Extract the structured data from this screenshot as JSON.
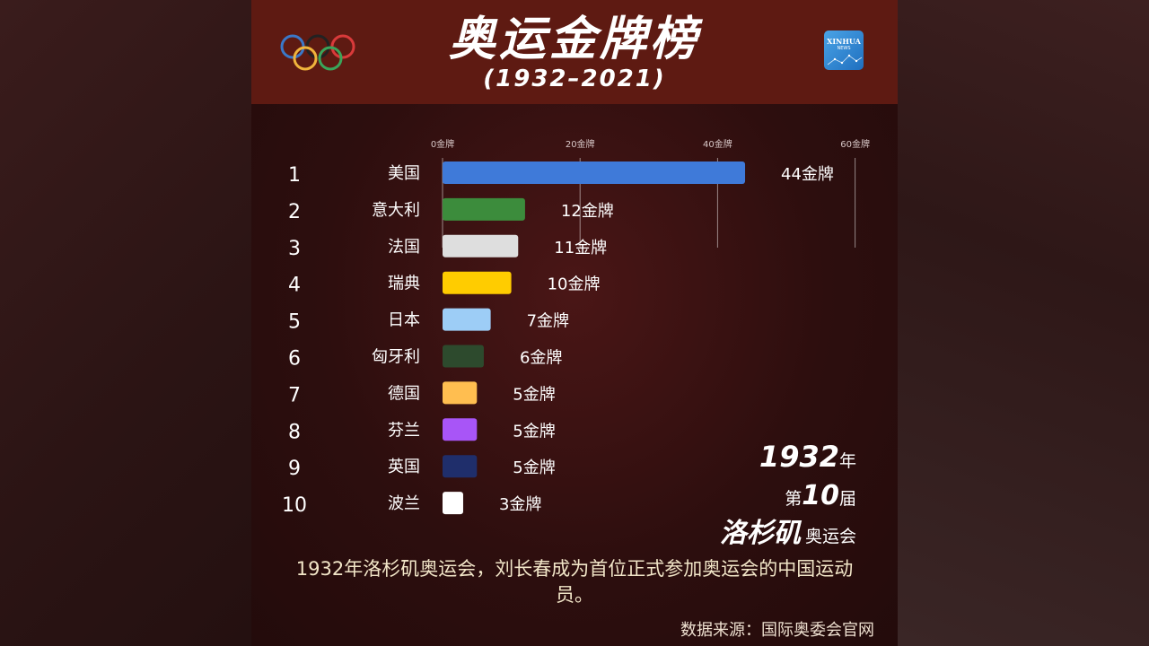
{
  "header": {
    "title": "奥运金牌榜",
    "subtitle": "(1932–2021)",
    "logo_text": "XINHUA",
    "logo_subtext": "NEWS"
  },
  "olympic_rings": [
    "#3a78c8",
    "#222222",
    "#d93a3a",
    "#f0b43c",
    "#3aa55a"
  ],
  "chart_data": {
    "type": "bar",
    "orientation": "horizontal",
    "title": "",
    "xlabel": "",
    "ylabel": "",
    "xlim": [
      0,
      60
    ],
    "ticks": [
      0,
      20,
      40,
      60
    ],
    "tick_labels": [
      "0金牌",
      "20金牌",
      "40金牌",
      "60金牌"
    ],
    "value_suffix": "金牌",
    "ranks": [
      "1",
      "2",
      "3",
      "4",
      "5",
      "6",
      "7",
      "8",
      "9",
      "10"
    ],
    "categories": [
      "美国",
      "意大利",
      "法国",
      "瑞典",
      "日本",
      "匈牙利",
      "德国",
      "芬兰",
      "英国",
      "波兰"
    ],
    "values": [
      44,
      12,
      11,
      10,
      7,
      6,
      5,
      5,
      5,
      3
    ],
    "colors": [
      "#3f7ad9",
      "#3c8c3c",
      "#dedede",
      "#ffcc00",
      "#9dcdf6",
      "#2d4a2d",
      "#ffbe50",
      "#a855f7",
      "#1f2e6b",
      "#ffffff"
    ]
  },
  "year_info": {
    "year": "1932",
    "year_suffix": "年",
    "edition_prefix": "第",
    "edition_num": "10",
    "edition_suffix": "届",
    "city": "洛杉矶",
    "games": "奥运会"
  },
  "caption": "1932年洛杉矶奥运会，刘长春成为首位正式参加奥运会的中国运动员。",
  "source": "数据来源：国际奥委会官网"
}
